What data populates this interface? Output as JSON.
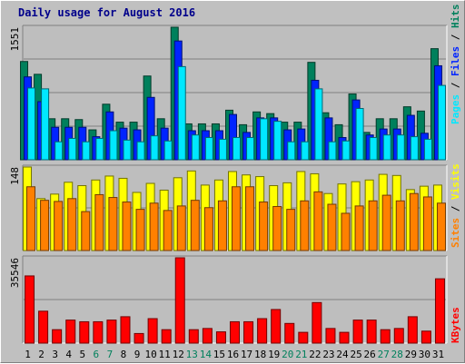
{
  "title": "Daily usage for August 2016",
  "colors": {
    "background": "#c0c0c0",
    "plot_background": "#bebebe",
    "title": "#00008b",
    "hits": "#00805c",
    "files": "#0024ff",
    "pages": "#00e8ff",
    "visits": "#ffff00",
    "sites": "#ff8000",
    "kbytes": "#ff0000",
    "weekend_label": "#00805c",
    "weekday_label": "#000000",
    "gridline": "#808080"
  },
  "chart_data": [
    {
      "type": "bar",
      "title": "Daily usage for August 2016",
      "categories": [
        "1",
        "2",
        "3",
        "4",
        "5",
        "6",
        "7",
        "8",
        "9",
        "10",
        "11",
        "12",
        "13",
        "14",
        "15",
        "16",
        "17",
        "18",
        "19",
        "20",
        "21",
        "22",
        "23",
        "24",
        "25",
        "26",
        "27",
        "28",
        "29",
        "30",
        "31"
      ],
      "weekend_days": [
        "6",
        "7",
        "13",
        "14",
        "20",
        "21",
        "27",
        "28"
      ],
      "ymax_label": "1551",
      "ylim": [
        0,
        1551
      ],
      "grid": true,
      "legend": "right",
      "legend_entries": [
        "Pages",
        "Files",
        "Hits"
      ],
      "series": [
        {
          "name": "Hits",
          "color_key": "hits",
          "values": [
            1150,
            1000,
            480,
            480,
            470,
            350,
            650,
            440,
            440,
            980,
            480,
            1551,
            420,
            420,
            420,
            580,
            410,
            560,
            540,
            440,
            440,
            1140,
            550,
            410,
            770,
            320,
            480,
            480,
            620,
            570,
            1300
          ]
        },
        {
          "name": "Files",
          "color_key": "files",
          "values": [
            970,
            680,
            380,
            380,
            380,
            270,
            560,
            370,
            350,
            730,
            370,
            1390,
            340,
            340,
            340,
            530,
            320,
            490,
            490,
            350,
            360,
            930,
            490,
            260,
            700,
            290,
            360,
            360,
            520,
            310,
            1100
          ]
        },
        {
          "name": "Pages",
          "color_key": "pages",
          "values": [
            840,
            830,
            210,
            250,
            210,
            250,
            340,
            230,
            210,
            280,
            220,
            1090,
            290,
            260,
            240,
            260,
            260,
            480,
            450,
            210,
            210,
            830,
            210,
            220,
            600,
            260,
            290,
            290,
            270,
            240,
            870
          ]
        }
      ]
    },
    {
      "type": "bar",
      "categories": [
        "1",
        "2",
        "3",
        "4",
        "5",
        "6",
        "7",
        "8",
        "9",
        "10",
        "11",
        "12",
        "13",
        "14",
        "15",
        "16",
        "17",
        "18",
        "19",
        "20",
        "21",
        "22",
        "23",
        "24",
        "25",
        "26",
        "27",
        "28",
        "29",
        "30",
        "31"
      ],
      "ymax_label": "148",
      "ylim": [
        0,
        148
      ],
      "grid": true,
      "legend": "right",
      "legend_entries": [
        "Sites",
        "Visits"
      ],
      "series": [
        {
          "name": "Visits",
          "color_key": "visits",
          "values": [
            148,
            92,
            100,
            121,
            115,
            125,
            132,
            128,
            103,
            119,
            107,
            129,
            141,
            116,
            125,
            140,
            134,
            131,
            115,
            120,
            140,
            136,
            101,
            118,
            122,
            125,
            135,
            133,
            108,
            114,
            116
          ]
        },
        {
          "name": "Sites",
          "color_key": "sites",
          "values": [
            113,
            89,
            87,
            92,
            69,
            99,
            94,
            86,
            73,
            84,
            71,
            79,
            89,
            76,
            88,
            113,
            113,
            86,
            78,
            73,
            88,
            104,
            82,
            66,
            79,
            88,
            98,
            88,
            101,
            95,
            84
          ]
        }
      ]
    },
    {
      "type": "bar",
      "categories": [
        "1",
        "2",
        "3",
        "4",
        "5",
        "6",
        "7",
        "8",
        "9",
        "10",
        "11",
        "12",
        "13",
        "14",
        "15",
        "16",
        "17",
        "18",
        "19",
        "20",
        "21",
        "22",
        "23",
        "24",
        "25",
        "26",
        "27",
        "28",
        "29",
        "30",
        "31"
      ],
      "ymax_label": "35546",
      "ylim": [
        0,
        35546
      ],
      "grid": true,
      "legend": "right",
      "legend_entries": [
        "KBytes"
      ],
      "series": [
        {
          "name": "KBytes",
          "color_key": "kbytes",
          "values": [
            28000,
            13300,
            5600,
            9600,
            8900,
            8900,
            9600,
            11000,
            4000,
            10200,
            5600,
            35546,
            5600,
            6100,
            4700,
            8900,
            8900,
            10200,
            14000,
            8200,
            4500,
            16900,
            6100,
            4500,
            9600,
            9600,
            5600,
            6100,
            11000,
            5000,
            26800
          ]
        }
      ]
    }
  ]
}
